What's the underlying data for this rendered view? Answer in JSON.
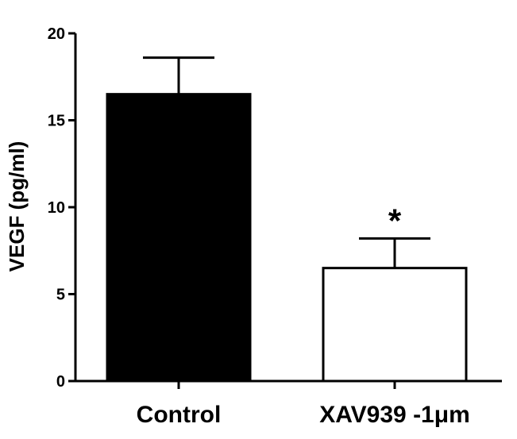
{
  "chart_data": {
    "type": "bar",
    "ylabel": "VEGF (pg/ml)",
    "xlabel": "",
    "ylim": [
      0,
      20
    ],
    "yticks": [
      0,
      5,
      10,
      15,
      20
    ],
    "categories": [
      "Control",
      "XAV939 -1μm"
    ],
    "values": [
      16.5,
      6.5
    ],
    "error_upper": [
      18.6,
      8.2
    ],
    "bar_colors": [
      "#000000",
      "#ffffff"
    ],
    "annotations": [
      {
        "category": "XAV939 -1μm",
        "text": "*"
      }
    ],
    "grid": false,
    "legend": "none"
  }
}
